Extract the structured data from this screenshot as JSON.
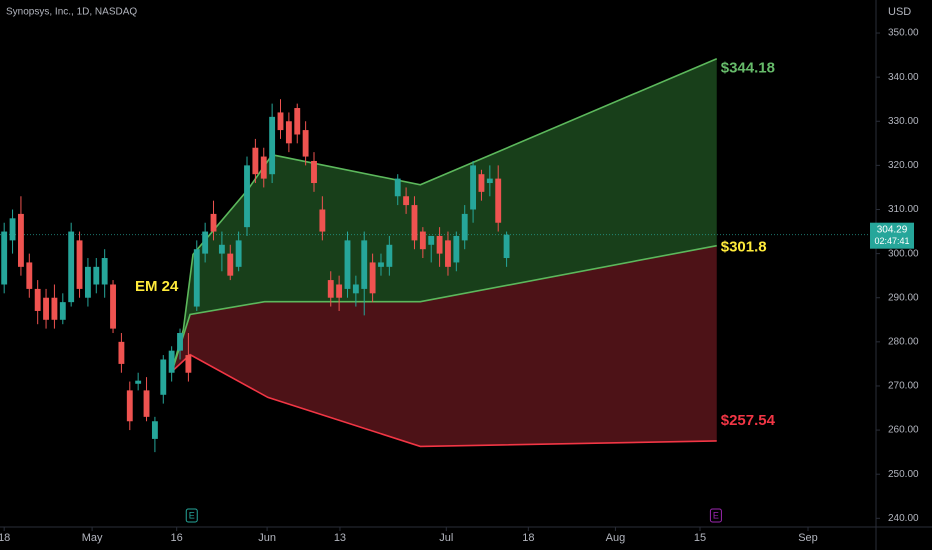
{
  "chart_data": {
    "type": "candlestick",
    "title": "Synopsys, Inc., 1D, NASDAQ",
    "currency": "USD",
    "colors": {
      "up": "#26a69a",
      "down": "#ef5350"
    },
    "x": [
      0,
      1,
      2,
      3,
      4,
      5,
      6,
      7,
      8,
      9,
      10,
      11,
      12,
      13,
      14,
      15,
      16,
      17,
      18,
      19,
      20,
      21,
      22,
      23,
      24,
      25,
      26,
      27,
      28,
      29,
      30,
      31,
      32,
      33,
      34,
      35,
      36,
      37,
      38,
      39,
      40,
      41,
      42,
      43,
      44,
      45,
      46,
      47,
      48,
      49,
      50,
      51,
      52,
      53,
      54,
      55,
      56,
      57,
      58,
      59,
      60
    ],
    "open": [
      293,
      303,
      309,
      298,
      292,
      290,
      290,
      285,
      289,
      303,
      290,
      293,
      293,
      293,
      280,
      269,
      270.5,
      269,
      258,
      268,
      273,
      278,
      277,
      288,
      300,
      309,
      300,
      300,
      297,
      306,
      324,
      322,
      318,
      332,
      330,
      333,
      328,
      321,
      310,
      294,
      293,
      292,
      291,
      292,
      298,
      297,
      297,
      313,
      313,
      311,
      305,
      302,
      304,
      303,
      298,
      303,
      310,
      318,
      316,
      317,
      299
    ],
    "high": [
      307,
      310,
      313,
      300,
      294,
      292,
      293,
      291,
      307,
      305,
      299,
      299,
      301,
      294,
      282,
      271,
      273,
      272,
      263,
      277,
      279,
      283,
      282,
      303,
      307,
      312,
      305,
      302,
      305,
      322,
      326,
      324,
      334,
      335,
      332,
      334,
      330,
      323,
      313,
      296,
      295,
      305,
      295,
      305,
      300,
      300,
      304,
      318,
      315,
      313,
      306,
      304,
      306,
      305,
      305,
      311,
      321,
      319,
      320,
      320,
      305
    ],
    "low": [
      291,
      300,
      295,
      290,
      284,
      283,
      283,
      284,
      288,
      290,
      288,
      291,
      290,
      282,
      273,
      260,
      269,
      262,
      255,
      266,
      271,
      276,
      271,
      287,
      298,
      303,
      296,
      294,
      296,
      304,
      316,
      315,
      316,
      326,
      323,
      325,
      320,
      314,
      303,
      288,
      287,
      290,
      288,
      286,
      289,
      295,
      295,
      311,
      309,
      301,
      299,
      298,
      297,
      295,
      296,
      301,
      307,
      312,
      313,
      305,
      297
    ],
    "close": [
      305,
      308,
      297,
      292,
      287,
      285,
      285,
      289,
      305,
      292,
      297,
      297,
      299,
      283,
      275,
      262,
      271.2,
      263,
      262,
      276,
      278,
      282,
      273,
      301,
      305,
      305,
      302,
      295,
      303,
      320,
      318,
      317,
      331,
      328,
      325,
      327,
      322,
      316,
      305,
      290,
      290,
      303,
      293,
      303,
      291,
      298,
      302,
      317,
      311,
      303,
      301,
      304,
      300,
      297,
      304,
      309,
      320,
      314,
      317,
      307,
      304.29
    ],
    "last_price": 304.29,
    "countdown": "02:47:41",
    "upper": {
      "color": "#5cb85c",
      "x": [
        20.04,
        21.4,
        22.55,
        29.1,
        32,
        49.7,
        85.1
      ],
      "values": [
        273.3,
        282.8,
        299.8,
        314.5,
        322.4,
        315.6,
        344.18
      ]
    },
    "middle": {
      "color": "#5cb85c",
      "x": [
        20.04,
        22.2,
        31.1,
        49.7,
        85.1
      ],
      "values": [
        273.3,
        286.2,
        289.1,
        289.1,
        301.8
      ]
    },
    "lower": {
      "color": "#f23645",
      "x": [
        20.04,
        22.2,
        31.5,
        49.7,
        85.1
      ],
      "values": [
        273.3,
        277.1,
        267.4,
        256.3,
        257.54
      ]
    },
    "fills": {
      "upper": "#1c4a1f",
      "lower": "#5a151b"
    },
    "annotations": [
      {
        "text": "$344.18",
        "color": "#66bb6a"
      },
      {
        "text": "$301.8",
        "color": "#ffeb3b"
      },
      {
        "text": "$257.54",
        "color": "#f23645"
      },
      {
        "text": "EM 24",
        "color": "#ffeb3b"
      }
    ],
    "events": [
      {
        "label": "E",
        "x": 22.4,
        "color": "#26a69a"
      },
      {
        "label": "E",
        "x": 85.0,
        "color": "#9c27b0"
      }
    ],
    "xlim": [
      -0.5,
      104
    ],
    "xticks": [
      {
        "value": 0,
        "label": "18"
      },
      {
        "value": 10.5,
        "label": "May"
      },
      {
        "value": 20.6,
        "label": "16"
      },
      {
        "value": 31.4,
        "label": "Jun"
      },
      {
        "value": 40.1,
        "label": "13"
      },
      {
        "value": 52.8,
        "label": "Jul"
      },
      {
        "value": 62.6,
        "label": "18"
      },
      {
        "value": 73,
        "label": "Aug"
      },
      {
        "value": 83.1,
        "label": "15"
      },
      {
        "value": 96,
        "label": "Sep"
      }
    ],
    "ylim": [
      238.03,
      352.5
    ],
    "yticks": [
      {
        "value": 240,
        "label": "240.00"
      },
      {
        "value": 250,
        "label": "250.00"
      },
      {
        "value": 260,
        "label": "260.00"
      },
      {
        "value": 270,
        "label": "270.00"
      },
      {
        "value": 280,
        "label": "280.00"
      },
      {
        "value": 290,
        "label": "290.00"
      },
      {
        "value": 300,
        "label": "300.00"
      },
      {
        "value": 310,
        "label": "310.00"
      },
      {
        "value": 320,
        "label": "320.00"
      },
      {
        "value": 330,
        "label": "330.00"
      },
      {
        "value": 340,
        "label": "340.00"
      },
      {
        "value": 350,
        "label": "350.00"
      }
    ],
    "grid": false
  }
}
